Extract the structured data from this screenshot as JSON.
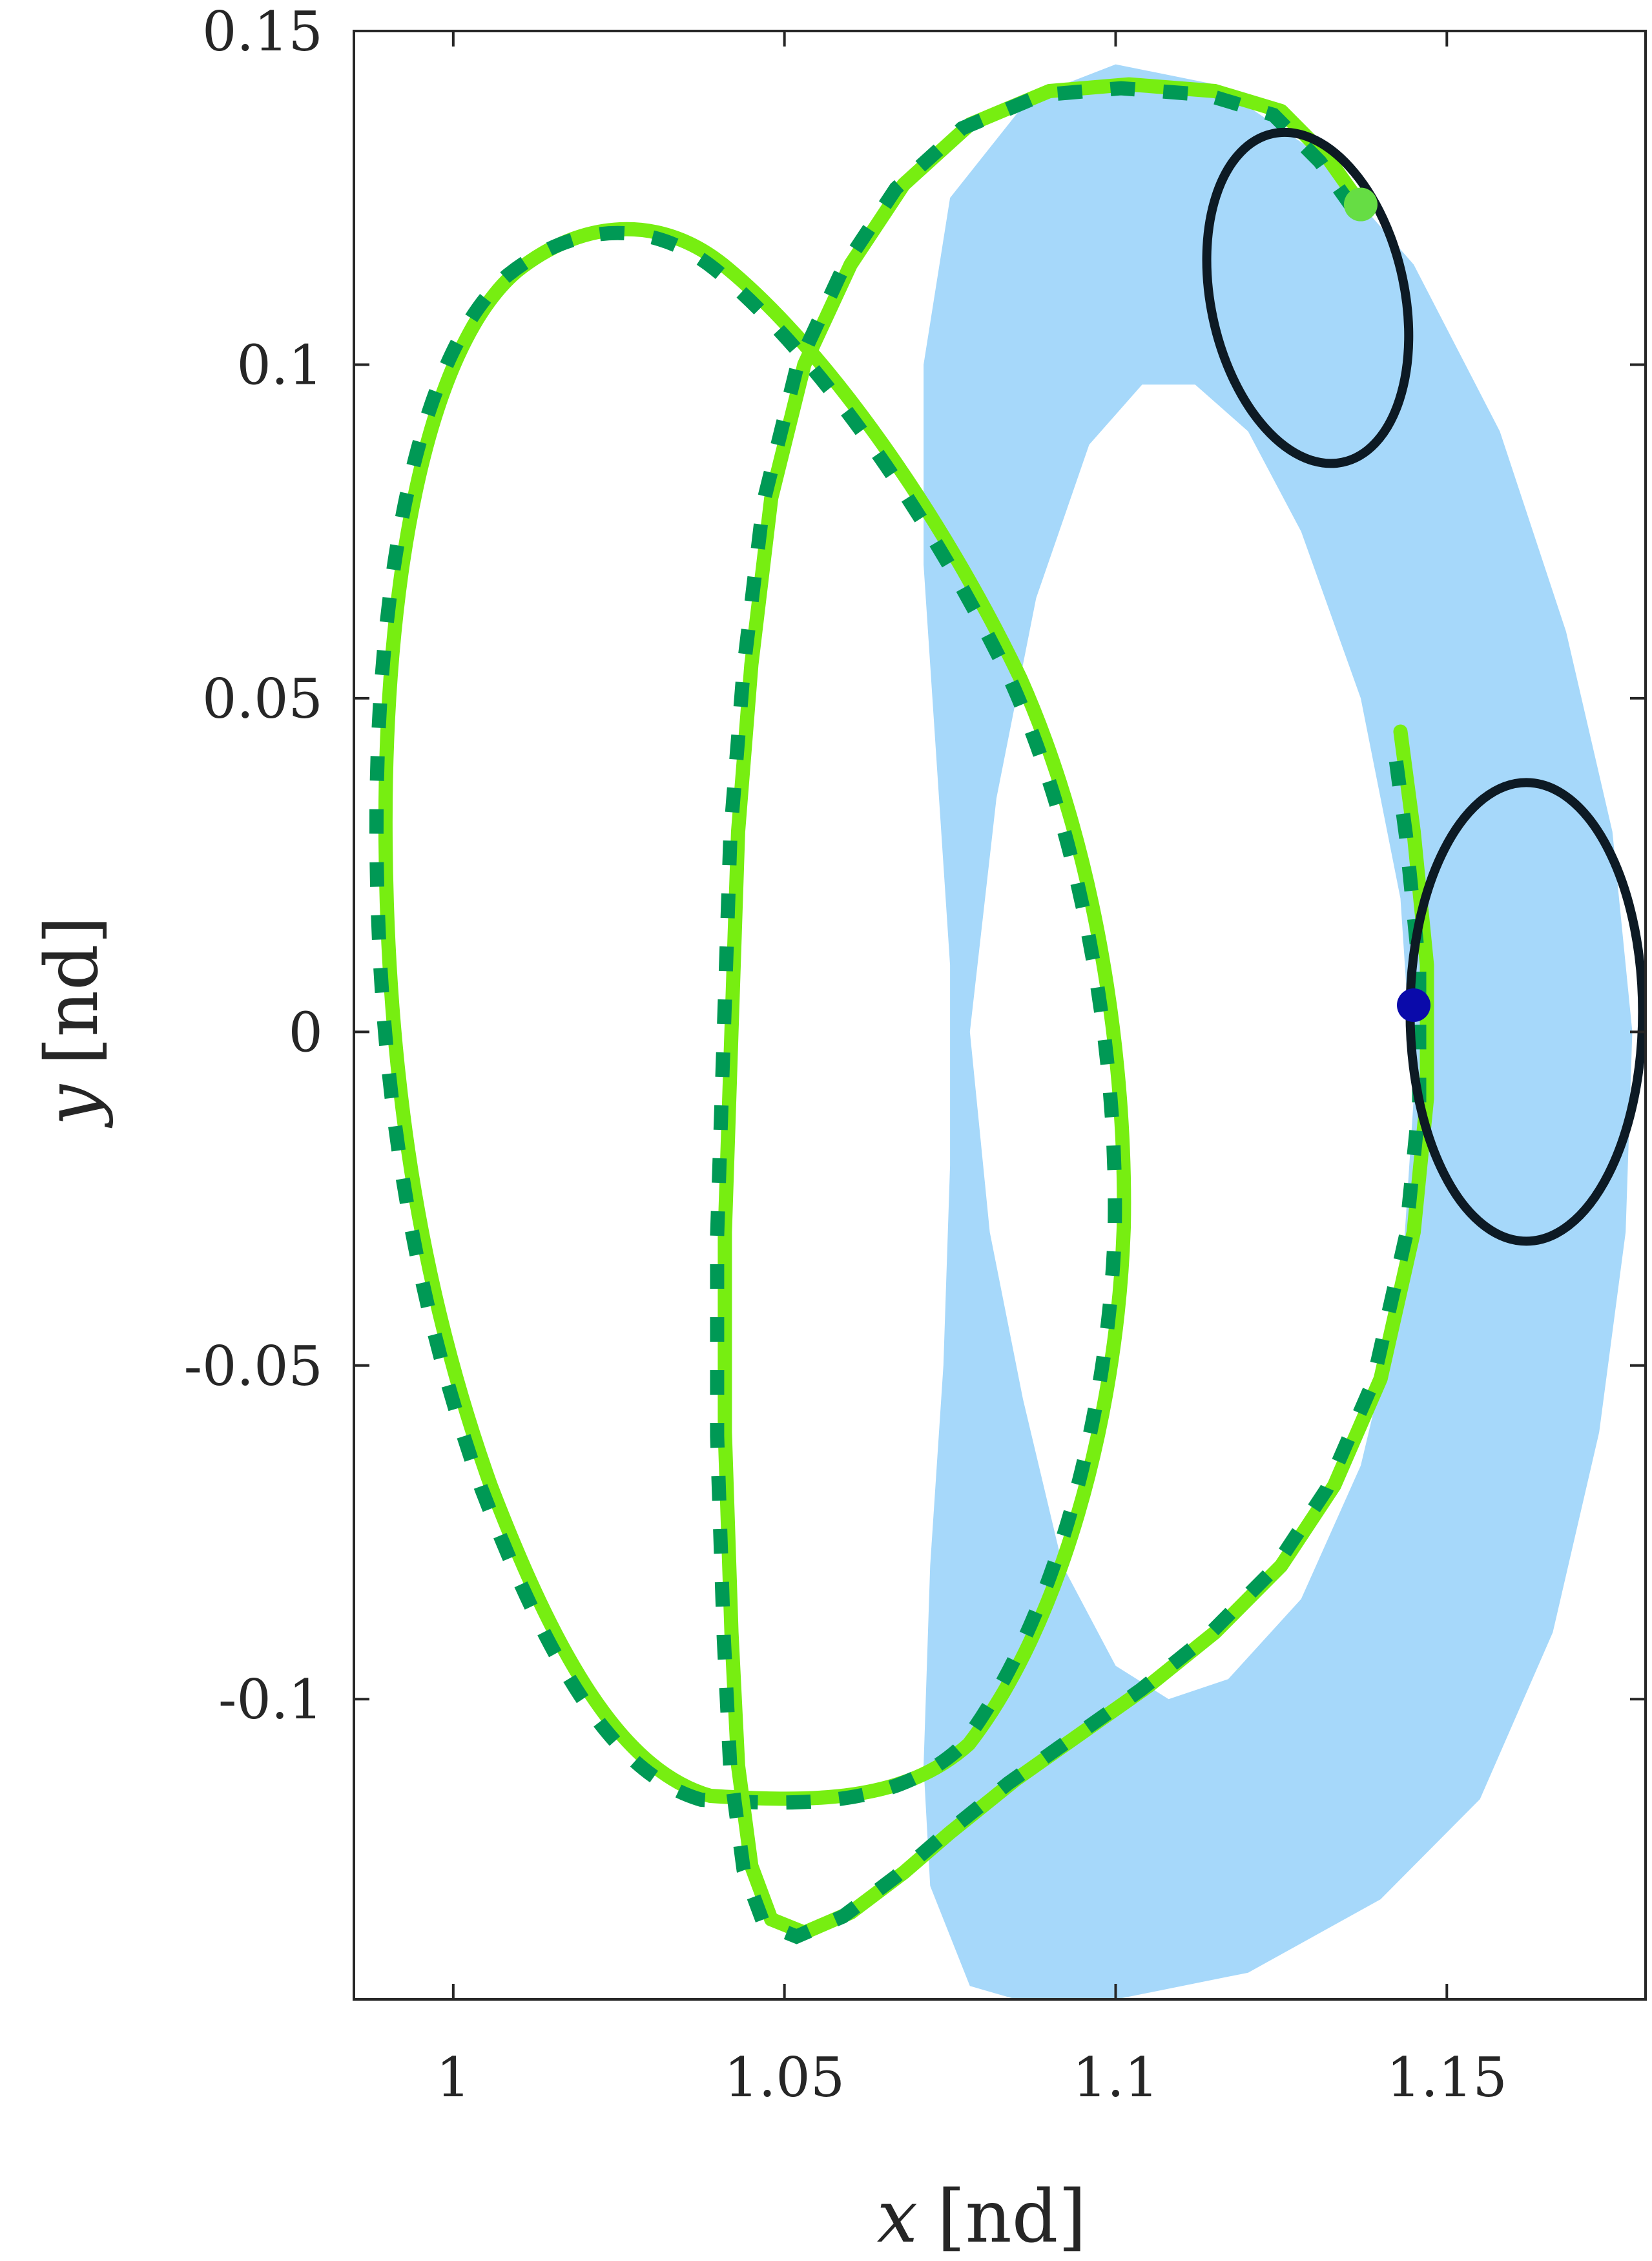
{
  "chart_data": {
    "type": "line",
    "title": "",
    "xlabel_var": "x",
    "xlabel_unit": "[nd]",
    "ylabel_var": "y",
    "ylabel_unit": "[nd]",
    "xlim": [
      0.985,
      1.18
    ],
    "ylim": [
      -0.145,
      0.15
    ],
    "xticks": [
      1,
      1.05,
      1.1,
      1.15
    ],
    "xtick_labels": [
      "1",
      "1.05",
      "1.1",
      "1.15"
    ],
    "yticks": [
      -0.1,
      -0.05,
      0,
      0.05,
      0.1,
      0.15
    ],
    "ytick_labels": [
      "-0.1",
      "-0.05",
      "0",
      "0.05",
      "0.1",
      "0.15"
    ],
    "grid": false,
    "colors": {
      "band": "#a6d8fa",
      "trajectory": "#77ee11",
      "dashed": "#009955",
      "orbit": "#0d1a24",
      "start_point": "#66dd44",
      "end_point": "#0a0aaa"
    },
    "band": {
      "outer": [
        [
          1.078,
          -0.143
        ],
        [
          1.072,
          -0.128
        ],
        [
          1.071,
          -0.11
        ],
        [
          1.072,
          -0.08
        ],
        [
          1.074,
          -0.05
        ],
        [
          1.075,
          -0.02
        ],
        [
          1.075,
          0.01
        ],
        [
          1.073,
          0.04
        ],
        [
          1.071,
          0.07
        ],
        [
          1.071,
          0.1
        ],
        [
          1.075,
          0.125
        ],
        [
          1.087,
          0.14
        ],
        [
          1.1,
          0.145
        ],
        [
          1.115,
          0.142
        ],
        [
          1.13,
          0.132
        ],
        [
          1.145,
          0.115
        ],
        [
          1.158,
          0.09
        ],
        [
          1.168,
          0.06
        ],
        [
          1.175,
          0.03
        ],
        [
          1.178,
          0.0
        ],
        [
          1.177,
          -0.03
        ],
        [
          1.173,
          -0.06
        ],
        [
          1.166,
          -0.09
        ],
        [
          1.155,
          -0.115
        ],
        [
          1.14,
          -0.13
        ],
        [
          1.12,
          -0.141
        ],
        [
          1.1,
          -0.145
        ],
        [
          1.085,
          -0.145
        ]
      ],
      "inner": [
        [
          1.078,
          0.0
        ],
        [
          1.082,
          0.035
        ],
        [
          1.088,
          0.065
        ],
        [
          1.096,
          0.088
        ],
        [
          1.104,
          0.097
        ],
        [
          1.112,
          0.097
        ],
        [
          1.12,
          0.09
        ],
        [
          1.128,
          0.075
        ],
        [
          1.137,
          0.05
        ],
        [
          1.143,
          0.02
        ],
        [
          1.145,
          -0.01
        ],
        [
          1.143,
          -0.04
        ],
        [
          1.137,
          -0.065
        ],
        [
          1.128,
          -0.085
        ],
        [
          1.117,
          -0.097
        ],
        [
          1.108,
          -0.1
        ],
        [
          1.1,
          -0.095
        ],
        [
          1.092,
          -0.08
        ],
        [
          1.086,
          -0.055
        ],
        [
          1.081,
          -0.03
        ]
      ]
    },
    "trajectory": [
      [
        1.137,
        0.124
      ],
      [
        1.132,
        0.131
      ],
      [
        1.125,
        0.138
      ],
      [
        1.115,
        0.141
      ],
      [
        1.102,
        0.142
      ],
      [
        1.09,
        0.141
      ],
      [
        1.078,
        0.136
      ],
      [
        1.068,
        0.127
      ],
      [
        1.06,
        0.115
      ],
      [
        1.053,
        0.1
      ],
      [
        1.048,
        0.08
      ],
      [
        1.045,
        0.055
      ],
      [
        1.043,
        0.03
      ],
      [
        1.042,
        0.0
      ],
      [
        1.041,
        -0.03
      ],
      [
        1.041,
        -0.06
      ],
      [
        1.042,
        -0.09
      ],
      [
        1.043,
        -0.11
      ],
      [
        1.045,
        -0.125
      ],
      [
        1.048,
        -0.133
      ],
      [
        1.053,
        -0.135
      ],
      [
        1.06,
        -0.132
      ],
      [
        1.068,
        -0.126
      ],
      [
        1.075,
        -0.12
      ],
      [
        1.085,
        -0.112
      ],
      [
        1.095,
        -0.105
      ],
      [
        1.105,
        -0.098
      ],
      [
        1.115,
        -0.09
      ],
      [
        1.125,
        -0.08
      ],
      [
        1.133,
        -0.068
      ],
      [
        1.14,
        -0.052
      ],
      [
        1.145,
        -0.03
      ],
      [
        1.147,
        -0.01
      ],
      [
        1.147,
        0.01
      ],
      [
        1.145,
        0.03
      ],
      [
        1.143,
        0.045
      ]
    ]
  },
  "colors": {
    "axis": "#262626",
    "background": "#ffffff"
  }
}
